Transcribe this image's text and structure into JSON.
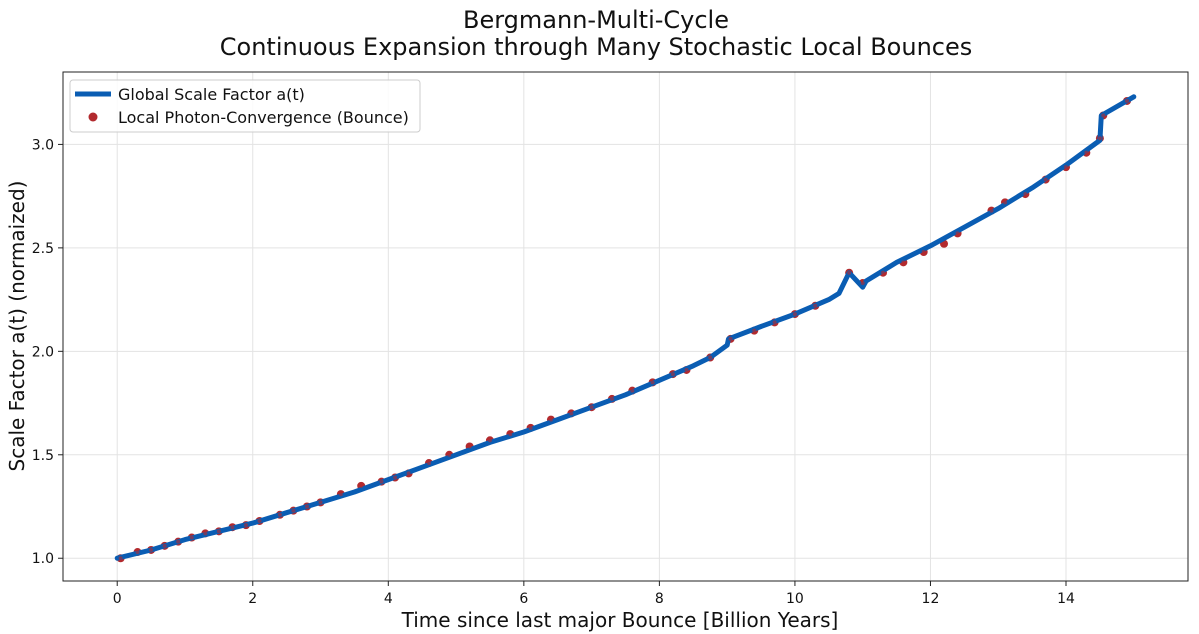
{
  "chart_data": {
    "type": "line",
    "title": "Bergmann-Multi-Cycle",
    "subtitle": "Continuous Expansion through Many Stochastic Local Bounces",
    "xlabel": "Time since last major Bounce [Billion Years]",
    "ylabel": "Scale Factor a(t) (normaized)",
    "xlim": [
      -0.8,
      15.8
    ],
    "ylim": [
      0.89,
      3.35
    ],
    "xticks": [
      0,
      2,
      4,
      6,
      8,
      10,
      12,
      14
    ],
    "xtick_labels": [
      "0",
      "2",
      "4",
      "6",
      "8",
      "10",
      "12",
      "14"
    ],
    "yticks": [
      1.0,
      1.5,
      2.0,
      2.5,
      3.0
    ],
    "ytick_labels": [
      "1.0",
      "1.5",
      "2.0",
      "2.5",
      "3.0"
    ],
    "grid": true,
    "legend_position": "top-left",
    "series": [
      {
        "name": "Global Scale Factor a(t)",
        "kind": "line",
        "color": "#0a5db3",
        "x": [
          0,
          0.5,
          1.0,
          1.5,
          2.0,
          2.5,
          3.0,
          3.5,
          4.0,
          4.5,
          5.0,
          5.5,
          6.0,
          6.5,
          7.0,
          7.5,
          8.0,
          8.5,
          8.75,
          9.0,
          9.02,
          9.5,
          10.0,
          10.5,
          10.65,
          10.8,
          11.0,
          11.05,
          11.5,
          12.0,
          12.5,
          13.0,
          13.5,
          14.0,
          14.5,
          14.52,
          15.0
        ],
        "y": [
          1.0,
          1.04,
          1.09,
          1.13,
          1.17,
          1.22,
          1.27,
          1.32,
          1.38,
          1.44,
          1.5,
          1.56,
          1.61,
          1.67,
          1.73,
          1.79,
          1.86,
          1.93,
          1.97,
          2.03,
          2.06,
          2.12,
          2.18,
          2.25,
          2.28,
          2.38,
          2.31,
          2.34,
          2.43,
          2.51,
          2.6,
          2.69,
          2.79,
          2.9,
          3.02,
          3.14,
          3.23
        ]
      },
      {
        "name": "Local Photon-Convergence (Bounce)",
        "kind": "scatter",
        "color": "#b22a2e",
        "x": [
          0.05,
          0.3,
          0.5,
          0.7,
          0.9,
          1.1,
          1.3,
          1.5,
          1.7,
          1.9,
          2.1,
          2.4,
          2.6,
          2.8,
          3.0,
          3.3,
          3.6,
          3.9,
          4.1,
          4.3,
          4.6,
          4.9,
          5.2,
          5.5,
          5.8,
          6.1,
          6.4,
          6.7,
          7.0,
          7.3,
          7.6,
          7.9,
          8.2,
          8.4,
          8.75,
          9.05,
          9.4,
          9.7,
          10.0,
          10.3,
          10.8,
          11.0,
          11.3,
          11.6,
          11.9,
          12.2,
          12.4,
          12.9,
          13.1,
          13.4,
          13.7,
          14.0,
          14.3,
          14.5,
          14.55,
          14.9
        ],
        "y": [
          1.0,
          1.03,
          1.04,
          1.06,
          1.08,
          1.1,
          1.12,
          1.13,
          1.15,
          1.16,
          1.18,
          1.21,
          1.23,
          1.25,
          1.27,
          1.31,
          1.35,
          1.37,
          1.39,
          1.41,
          1.46,
          1.5,
          1.54,
          1.57,
          1.6,
          1.63,
          1.67,
          1.7,
          1.73,
          1.77,
          1.81,
          1.85,
          1.89,
          1.91,
          1.97,
          2.06,
          2.1,
          2.14,
          2.18,
          2.22,
          2.38,
          2.33,
          2.38,
          2.43,
          2.48,
          2.52,
          2.57,
          2.68,
          2.72,
          2.76,
          2.83,
          2.89,
          2.96,
          3.03,
          3.14,
          3.21
        ]
      }
    ]
  }
}
